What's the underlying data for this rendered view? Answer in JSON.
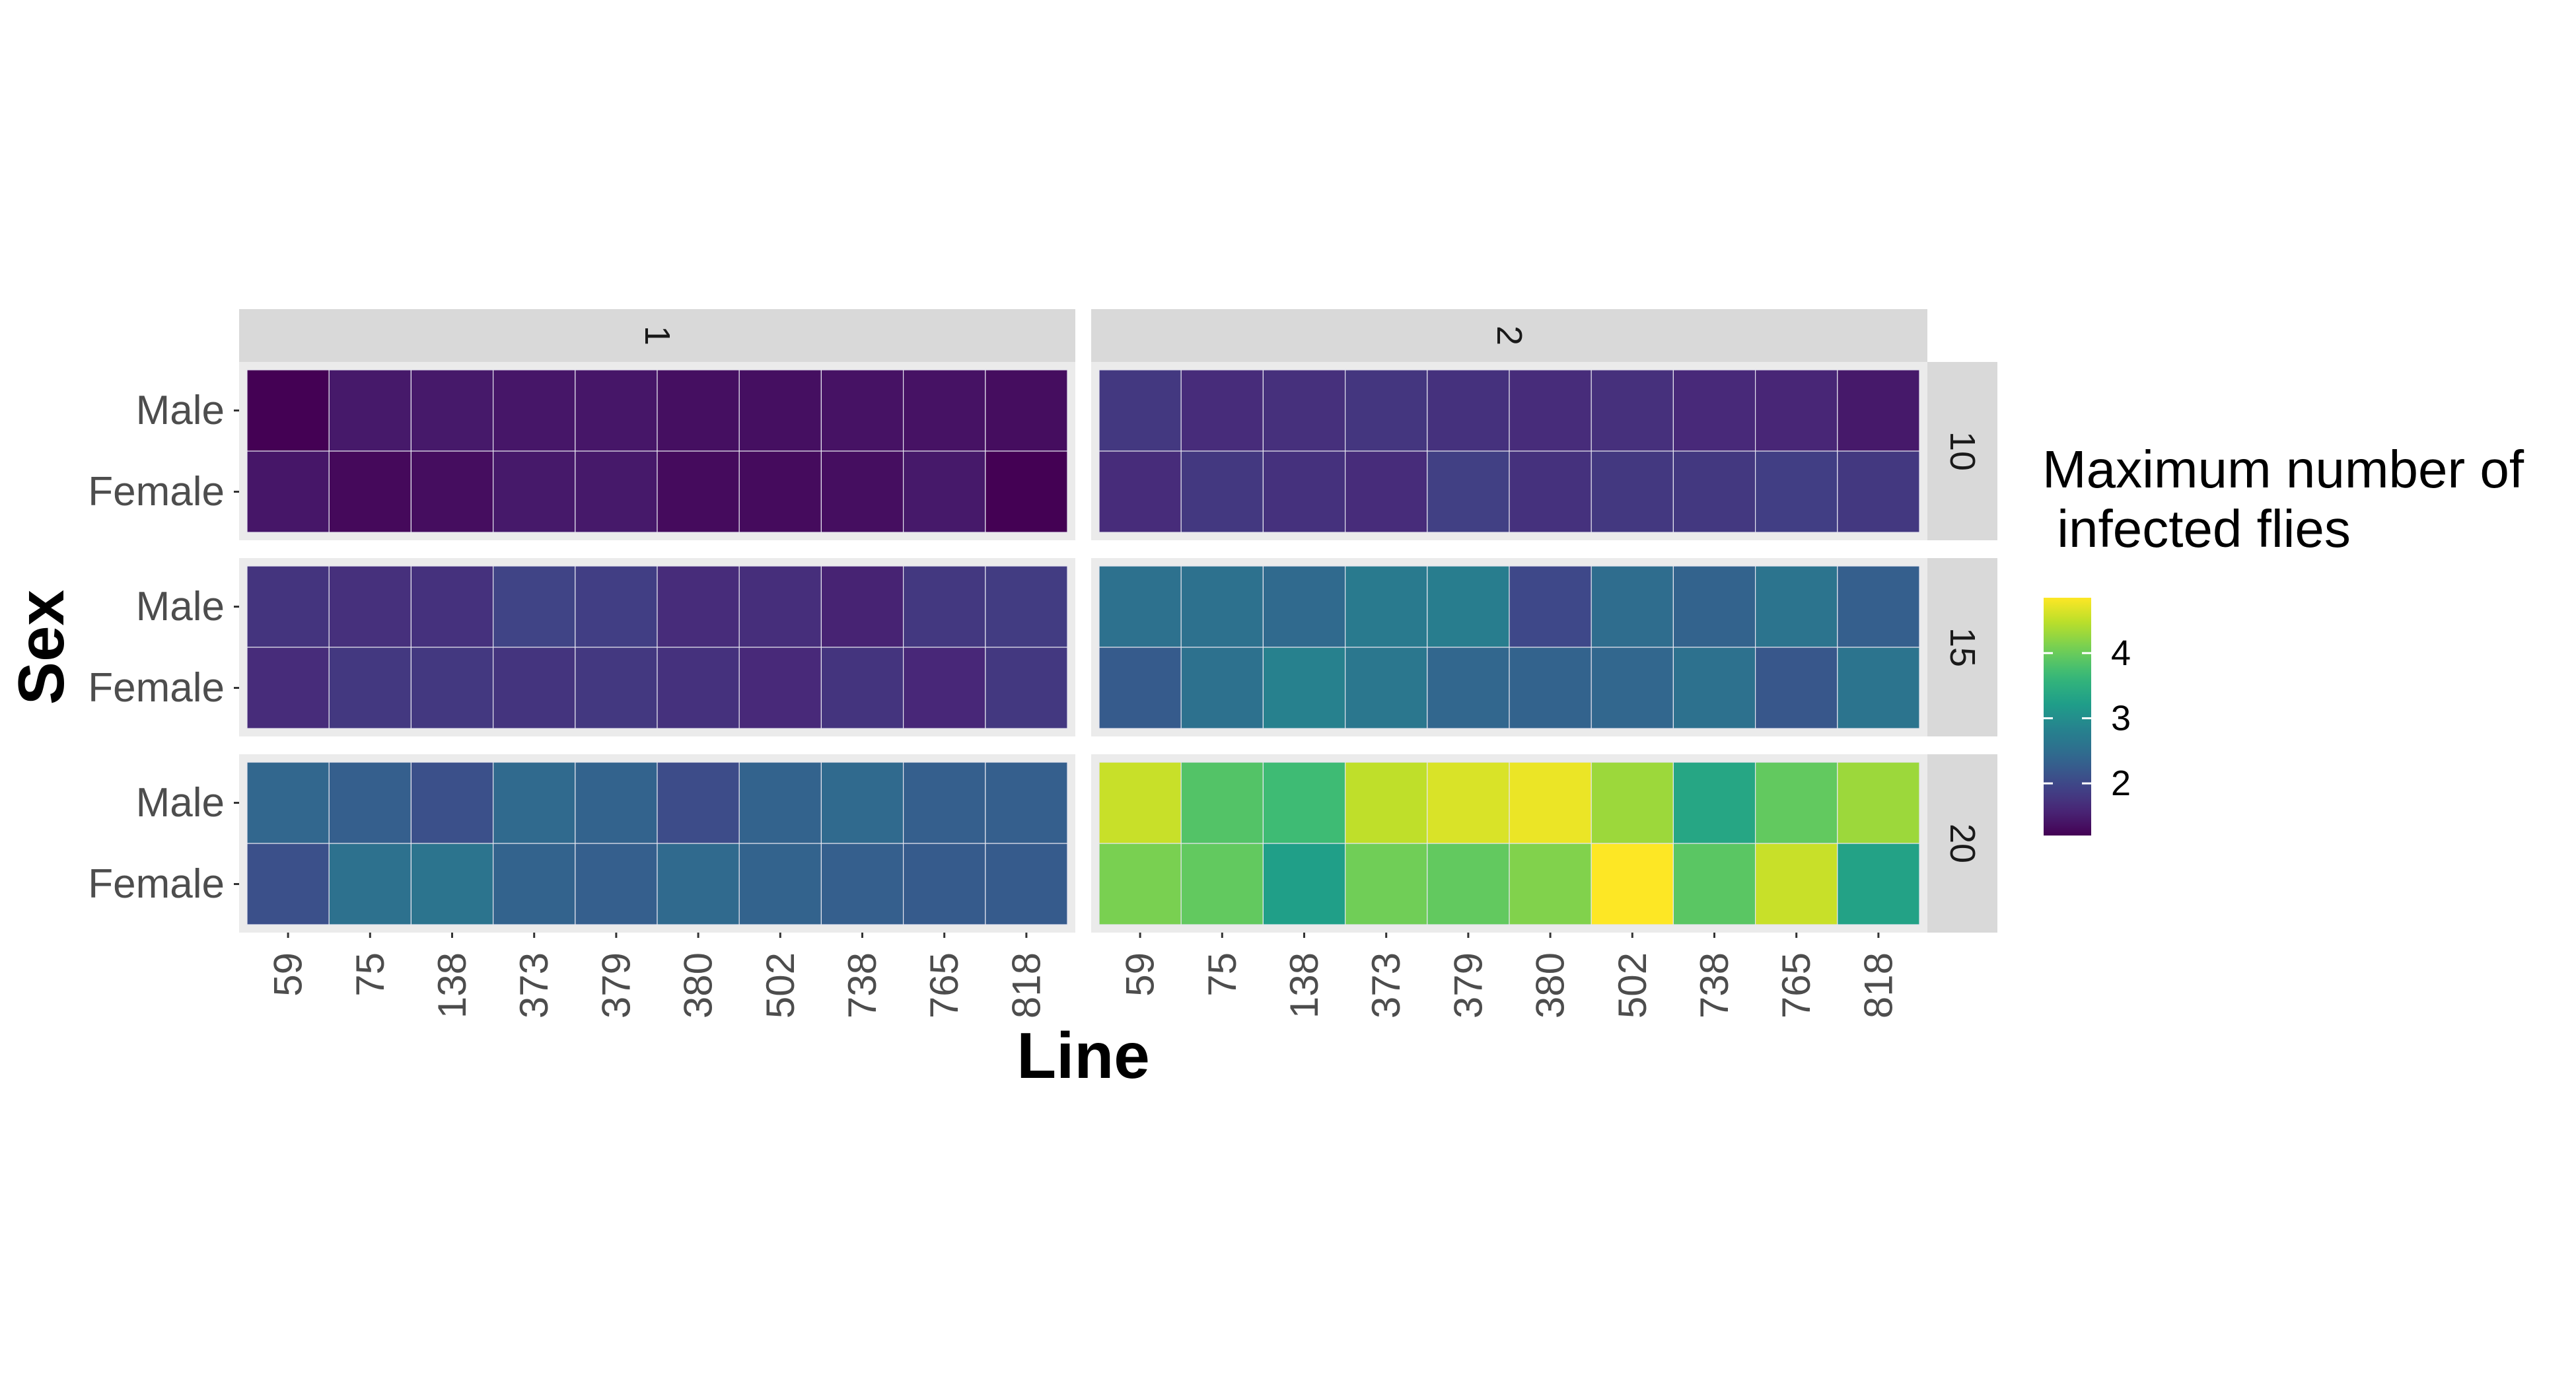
{
  "chart_data": {
    "type": "heatmap",
    "xlabel": "Line",
    "ylabel": "Sex",
    "x_categories": [
      "59",
      "75",
      "138",
      "373",
      "379",
      "380",
      "502",
      "738",
      "765",
      "818"
    ],
    "y_categories": [
      "Male",
      "Female"
    ],
    "facet_columns": [
      "1",
      "2"
    ],
    "facet_rows": [
      "10",
      "15",
      "20"
    ],
    "legend": {
      "title_lines": [
        "Maximum number of",
        " infected flies"
      ],
      "ticks": [
        2,
        3,
        4
      ],
      "min": 1.2,
      "max": 4.85,
      "position": "right",
      "colormap": "viridis"
    },
    "panels": [
      {
        "col": "1",
        "row": "10",
        "values": {
          "Male": [
            1.2,
            1.45,
            1.45,
            1.42,
            1.42,
            1.35,
            1.35,
            1.38,
            1.38,
            1.32
          ],
          "Female": [
            1.42,
            1.28,
            1.32,
            1.45,
            1.45,
            1.3,
            1.3,
            1.34,
            1.45,
            1.2
          ]
        }
      },
      {
        "col": "2",
        "row": "10",
        "values": {
          "Male": [
            1.8,
            1.65,
            1.7,
            1.78,
            1.72,
            1.65,
            1.7,
            1.62,
            1.58,
            1.45
          ],
          "Female": [
            1.65,
            1.8,
            1.72,
            1.65,
            1.9,
            1.72,
            1.8,
            1.8,
            1.88,
            1.8
          ]
        }
      },
      {
        "col": "1",
        "row": "15",
        "values": {
          "Male": [
            1.75,
            1.7,
            1.72,
            1.95,
            1.88,
            1.65,
            1.68,
            1.55,
            1.8,
            1.85
          ],
          "Female": [
            1.65,
            1.8,
            1.8,
            1.75,
            1.8,
            1.72,
            1.62,
            1.75,
            1.6,
            1.8
          ]
        }
      },
      {
        "col": "2",
        "row": "15",
        "values": {
          "Male": [
            2.55,
            2.55,
            2.45,
            2.7,
            2.75,
            2.0,
            2.5,
            2.35,
            2.6,
            2.3
          ],
          "Female": [
            2.25,
            2.55,
            2.8,
            2.65,
            2.4,
            2.35,
            2.4,
            2.55,
            2.2,
            2.6
          ]
        }
      },
      {
        "col": "1",
        "row": "20",
        "values": {
          "Male": [
            2.4,
            2.3,
            2.1,
            2.45,
            2.35,
            2.05,
            2.35,
            2.45,
            2.3,
            2.3
          ],
          "Female": [
            2.1,
            2.55,
            2.6,
            2.35,
            2.3,
            2.45,
            2.35,
            2.3,
            2.25,
            2.25
          ]
        }
      },
      {
        "col": "2",
        "row": "20",
        "values": {
          "Male": [
            4.55,
            3.85,
            3.7,
            4.5,
            4.65,
            4.75,
            4.3,
            3.35,
            3.95,
            4.3
          ],
          "Female": [
            4.1,
            3.95,
            3.25,
            4.05,
            3.95,
            4.15,
            4.85,
            3.9,
            4.55,
            3.3
          ]
        }
      }
    ]
  }
}
